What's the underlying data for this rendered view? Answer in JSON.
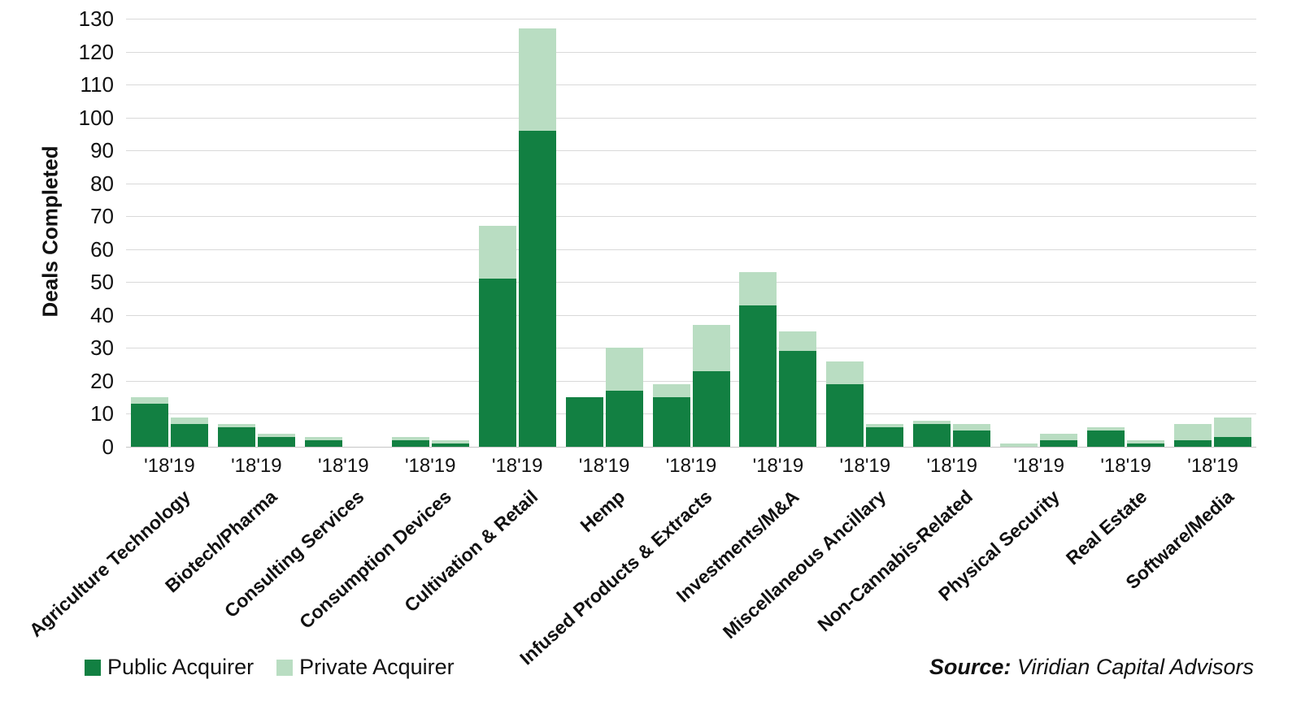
{
  "chart_data": {
    "type": "bar",
    "stacked": true,
    "ylabel": "Deals Completed",
    "ylim": [
      0,
      130
    ],
    "ytick_step": 10,
    "grid": true,
    "legend_position": "bottom-left",
    "group_tick_label": "'18'19",
    "years": [
      "'18",
      "'19"
    ],
    "categories": [
      "Agriculture Technology",
      "Biotech/Pharma",
      "Consulting Services",
      "Consumption Devices",
      "Cultivation & Retail",
      "Hemp",
      "Infused Products & Extracts",
      "Investments/M&A",
      "Miscellaneous Ancillary",
      "Non-Cannabis-Related",
      "Physical Security",
      "Real Estate",
      "Software/Media"
    ],
    "series": [
      {
        "year": "'18",
        "public_acquirer": [
          13,
          6,
          2,
          2,
          51,
          15,
          15,
          43,
          19,
          7,
          0,
          5,
          2
        ],
        "private_acquirer": [
          2,
          1,
          1,
          1,
          16,
          0,
          4,
          10,
          7,
          1,
          1,
          1,
          5
        ]
      },
      {
        "year": "'19",
        "public_acquirer": [
          7,
          3,
          0,
          1,
          96,
          17,
          23,
          29,
          6,
          5,
          2,
          1,
          3
        ],
        "private_acquirer": [
          2,
          1,
          0,
          1,
          31,
          13,
          14,
          6,
          1,
          2,
          2,
          1,
          6
        ]
      }
    ],
    "legend": {
      "public_label": "Public Acquirer",
      "private_label": "Private Acquirer"
    },
    "source": {
      "label": "Source:",
      "text": " Viridian Capital Advisors"
    },
    "colors": {
      "public": "#128042",
      "private": "#b9ddc2",
      "gridline": "#d9d9d9",
      "text": "#111111"
    }
  }
}
